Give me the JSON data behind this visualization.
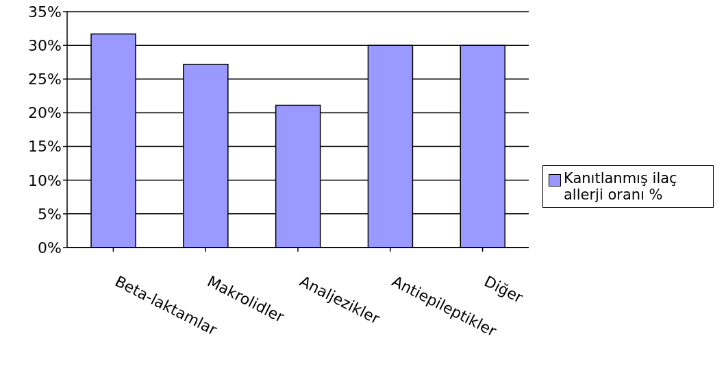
{
  "chart_data": {
    "type": "bar",
    "categories": [
      "Beta-laktamlar",
      "Makrolidler",
      "Analjezikler",
      "Antiepileptikler",
      "Diğer"
    ],
    "series": [
      {
        "name": "Kanıtlanmış ilaç allerji oranı %",
        "color": "#9999ff",
        "values": [
          31.7,
          27.2,
          21.1,
          30,
          30
        ]
      }
    ],
    "ylim": [
      0,
      35
    ],
    "yticks": [
      {
        "value": 0,
        "label": "0%"
      },
      {
        "value": 5,
        "label": "5%"
      },
      {
        "value": 10,
        "label": "10%"
      },
      {
        "value": 15,
        "label": "15%"
      },
      {
        "value": 20,
        "label": "20%"
      },
      {
        "value": 25,
        "label": "25%"
      },
      {
        "value": 30,
        "label": "30%"
      },
      {
        "value": 35,
        "label": "35%"
      }
    ],
    "grid": "y",
    "legend": "right"
  }
}
